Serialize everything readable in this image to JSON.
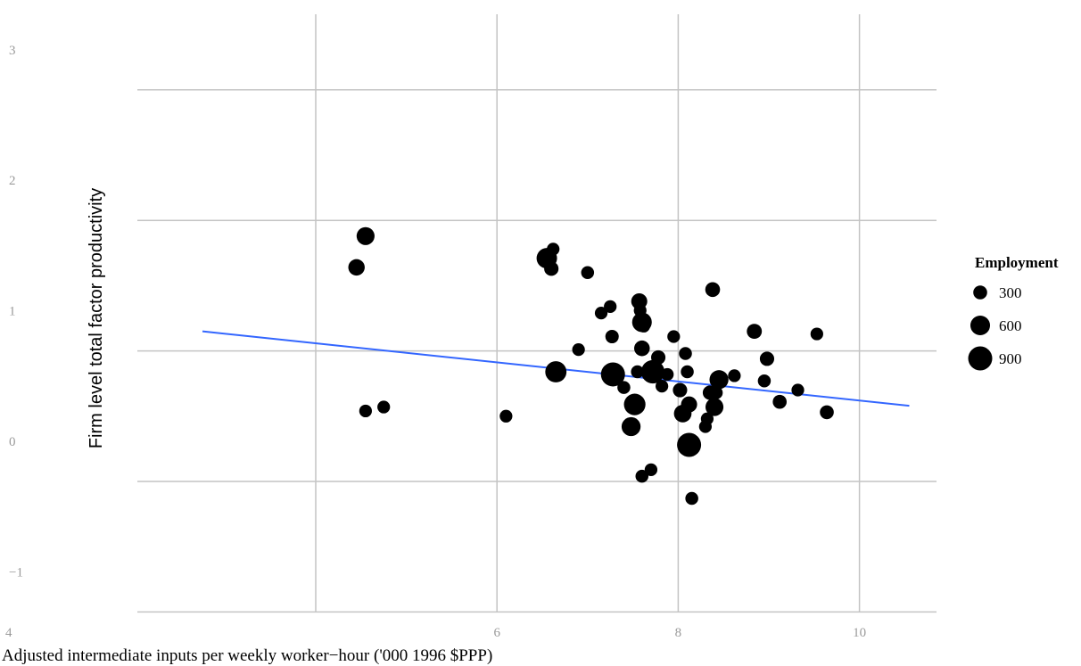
{
  "chart_data": {
    "type": "scatter",
    "xlabel": "Adjusted intermediate inputs per weekly worker−hour ('000 1996 $PPP)",
    "ylabel": "Firm level total factor productivity",
    "xlim": [
      2.6,
      10.9
    ],
    "ylim": [
      -1,
      3.4
    ],
    "x_ticks": [
      4,
      6,
      8,
      10
    ],
    "x_tick_labels": [
      "4",
      "6",
      "8",
      "10"
    ],
    "y_ticks": [
      -1,
      0,
      1,
      2,
      3
    ],
    "y_tick_labels": [
      "−1",
      "0",
      "1",
      "2",
      "3"
    ],
    "grid": true,
    "legend": {
      "title": "Employment",
      "position": "right",
      "sizes": [
        300,
        600,
        900
      ],
      "labels": [
        "300",
        "600",
        "900"
      ]
    },
    "trend_line": {
      "x": [
        2.75,
        10.55
      ],
      "y": [
        1.15,
        0.58
      ],
      "color": "#3366ff"
    },
    "point_color": "#000000",
    "points": [
      {
        "x": 4.45,
        "y": 1.64,
        "size": 420
      },
      {
        "x": 4.55,
        "y": 1.88,
        "size": 500
      },
      {
        "x": 4.55,
        "y": 0.54,
        "size": 250
      },
      {
        "x": 4.75,
        "y": 0.57,
        "size": 250
      },
      {
        "x": 6.1,
        "y": 0.5,
        "size": 250
      },
      {
        "x": 6.55,
        "y": 1.71,
        "size": 650
      },
      {
        "x": 6.6,
        "y": 1.63,
        "size": 320
      },
      {
        "x": 6.62,
        "y": 1.78,
        "size": 250
      },
      {
        "x": 6.65,
        "y": 0.84,
        "size": 700
      },
      {
        "x": 6.9,
        "y": 1.01,
        "size": 250
      },
      {
        "x": 7.0,
        "y": 1.6,
        "size": 260
      },
      {
        "x": 7.15,
        "y": 1.29,
        "size": 250
      },
      {
        "x": 7.25,
        "y": 1.34,
        "size": 250
      },
      {
        "x": 7.27,
        "y": 1.11,
        "size": 280
      },
      {
        "x": 7.28,
        "y": 0.82,
        "size": 900
      },
      {
        "x": 7.4,
        "y": 0.72,
        "size": 260
      },
      {
        "x": 7.48,
        "y": 0.42,
        "size": 560
      },
      {
        "x": 7.52,
        "y": 0.59,
        "size": 720
      },
      {
        "x": 7.55,
        "y": 0.84,
        "size": 260
      },
      {
        "x": 7.57,
        "y": 1.38,
        "size": 400
      },
      {
        "x": 7.58,
        "y": 1.31,
        "size": 250
      },
      {
        "x": 7.6,
        "y": 1.02,
        "size": 380
      },
      {
        "x": 7.6,
        "y": 1.22,
        "size": 600
      },
      {
        "x": 7.6,
        "y": 0.04,
        "size": 260
      },
      {
        "x": 7.62,
        "y": 1.19,
        "size": 250
      },
      {
        "x": 7.7,
        "y": 0.09,
        "size": 250
      },
      {
        "x": 7.72,
        "y": 0.84,
        "size": 850
      },
      {
        "x": 7.78,
        "y": 0.95,
        "size": 320
      },
      {
        "x": 7.82,
        "y": 0.73,
        "size": 250
      },
      {
        "x": 7.88,
        "y": 0.82,
        "size": 250
      },
      {
        "x": 7.95,
        "y": 1.11,
        "size": 250
      },
      {
        "x": 8.02,
        "y": 0.7,
        "size": 320
      },
      {
        "x": 8.05,
        "y": 0.52,
        "size": 480
      },
      {
        "x": 8.08,
        "y": 0.98,
        "size": 260
      },
      {
        "x": 8.1,
        "y": 0.84,
        "size": 260
      },
      {
        "x": 8.12,
        "y": 0.28,
        "size": 900
      },
      {
        "x": 8.12,
        "y": 0.59,
        "size": 400
      },
      {
        "x": 8.15,
        "y": -0.13,
        "size": 260
      },
      {
        "x": 8.3,
        "y": 0.42,
        "size": 250
      },
      {
        "x": 8.32,
        "y": 0.48,
        "size": 250
      },
      {
        "x": 8.35,
        "y": 0.68,
        "size": 320
      },
      {
        "x": 8.38,
        "y": 1.47,
        "size": 340
      },
      {
        "x": 8.4,
        "y": 0.57,
        "size": 500
      },
      {
        "x": 8.42,
        "y": 0.68,
        "size": 260
      },
      {
        "x": 8.45,
        "y": 0.78,
        "size": 560
      },
      {
        "x": 8.62,
        "y": 0.81,
        "size": 250
      },
      {
        "x": 8.84,
        "y": 1.15,
        "size": 350
      },
      {
        "x": 8.95,
        "y": 0.77,
        "size": 260
      },
      {
        "x": 8.98,
        "y": 0.94,
        "size": 320
      },
      {
        "x": 9.12,
        "y": 0.61,
        "size": 300
      },
      {
        "x": 9.32,
        "y": 0.7,
        "size": 250
      },
      {
        "x": 9.53,
        "y": 1.13,
        "size": 250
      },
      {
        "x": 9.64,
        "y": 0.53,
        "size": 300
      }
    ]
  }
}
